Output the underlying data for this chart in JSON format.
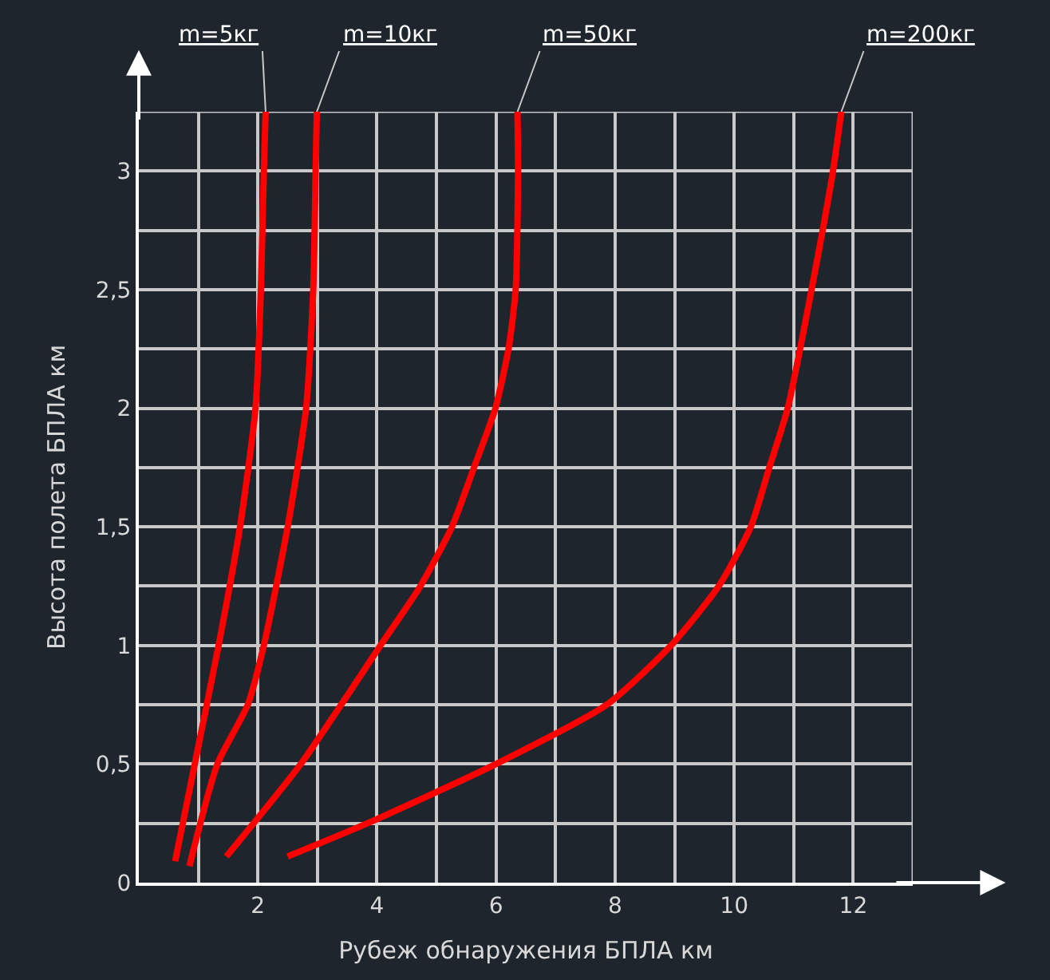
{
  "chart_data": {
    "type": "line",
    "xlabel": "Рубеж обнаружения БПЛА км",
    "ylabel": "Высота полета БПЛА км",
    "xlim": [
      0,
      13
    ],
    "ylim": [
      0,
      3.25
    ],
    "xticks": [
      {
        "value": 1,
        "label": null
      },
      2,
      {
        "value": 3,
        "label": null
      },
      4,
      {
        "value": 5,
        "label": null
      },
      6,
      {
        "value": 7,
        "label": null
      },
      8,
      {
        "value": 9,
        "label": null
      },
      10,
      {
        "value": 11,
        "label": null
      },
      12,
      {
        "value": 13,
        "label": null
      }
    ],
    "yticks": [
      0,
      {
        "value": 0.25,
        "label": null
      },
      {
        "value": 0.5,
        "label": "0,5"
      },
      {
        "value": 0.75,
        "label": null
      },
      1,
      {
        "value": 1.25,
        "label": null
      },
      {
        "value": 1.5,
        "label": "1,5"
      },
      {
        "value": 1.75,
        "label": null
      },
      2,
      {
        "value": 2.25,
        "label": null
      },
      {
        "value": 2.5,
        "label": "2,5"
      },
      {
        "value": 2.75,
        "label": null
      },
      3,
      {
        "value": 3.25,
        "label": null
      }
    ],
    "grid": true,
    "legend": false,
    "marker": "none",
    "line_style": "solid",
    "series": [
      {
        "name": "m=5кг",
        "color": "#ff0000",
        "x": [
          0.61,
          0.94,
          1.34,
          1.7,
          1.96,
          2.05,
          2.1,
          2.13
        ],
        "values": [
          0.09,
          0.5,
          1.0,
          1.5,
          2.0,
          2.5,
          3.0,
          3.25
        ]
      },
      {
        "name": "m=10кг",
        "color": "#ff0000",
        "x": [
          0.85,
          1.32,
          1.83,
          2.1,
          2.5,
          2.81,
          2.93,
          2.97,
          2.99
        ],
        "values": [
          0.07,
          0.5,
          0.75,
          1.0,
          1.5,
          2.0,
          2.5,
          3.0,
          3.25
        ]
      },
      {
        "name": "m=50кг",
        "color": "#ff0000",
        "x": [
          1.47,
          2.72,
          4.06,
          4.73,
          5.26,
          5.63,
          5.99,
          6.21,
          6.33,
          6.37,
          6.36
        ],
        "values": [
          0.11,
          0.5,
          1.0,
          1.25,
          1.5,
          1.75,
          2.0,
          2.25,
          2.5,
          3.0,
          3.25
        ]
      },
      {
        "name": "m=200кг",
        "color": "#ff0000",
        "x": [
          2.5,
          3.84,
          6.0,
          7.86,
          8.94,
          9.74,
          10.28,
          10.59,
          10.9,
          11.3,
          11.66,
          11.8
        ],
        "values": [
          0.11,
          0.25,
          0.5,
          0.75,
          1.0,
          1.25,
          1.5,
          1.75,
          2.0,
          2.5,
          3.0,
          3.25
        ]
      }
    ]
  }
}
